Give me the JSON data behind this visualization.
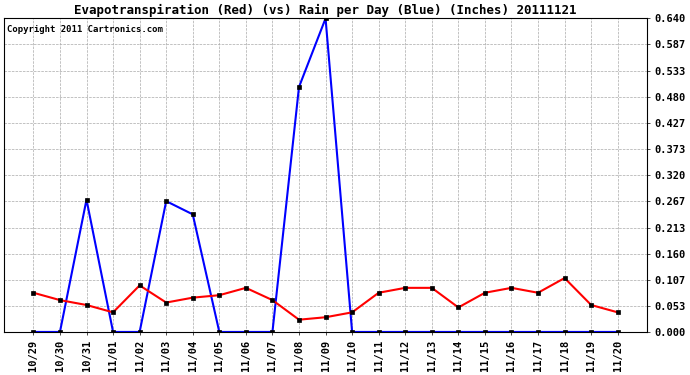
{
  "title": "Evapotranspiration (Red) (vs) Rain per Day (Blue) (Inches) 20111121",
  "copyright": "Copyright 2011 Cartronics.com",
  "x_labels": [
    "10/29",
    "10/30",
    "10/31",
    "11/01",
    "11/02",
    "11/03",
    "11/04",
    "11/05",
    "11/06",
    "11/07",
    "11/08",
    "11/09",
    "11/10",
    "11/11",
    "11/12",
    "11/13",
    "11/14",
    "11/15",
    "11/16",
    "11/17",
    "11/18",
    "11/19",
    "11/20"
  ],
  "blue_rain": [
    0.0,
    0.0,
    0.27,
    0.0,
    0.0,
    0.267,
    0.24,
    0.0,
    0.0,
    0.0,
    0.5,
    0.64,
    0.0,
    0.0,
    0.0,
    0.0,
    0.0,
    0.0,
    0.0,
    0.0,
    0.0,
    0.0,
    0.0
  ],
  "red_et": [
    0.08,
    0.065,
    0.055,
    0.04,
    0.095,
    0.06,
    0.07,
    0.075,
    0.09,
    0.065,
    0.025,
    0.03,
    0.04,
    0.08,
    0.09,
    0.09,
    0.05,
    0.08,
    0.09,
    0.08,
    0.11,
    0.055,
    0.04
  ],
  "y_ticks": [
    0.0,
    0.053,
    0.107,
    0.16,
    0.213,
    0.267,
    0.32,
    0.373,
    0.427,
    0.48,
    0.533,
    0.587,
    0.64
  ],
  "ylim": [
    0.0,
    0.64
  ],
  "blue_color": "#0000FF",
  "red_color": "#FF0000",
  "bg_color": "#FFFFFF",
  "grid_color": "#AAAAAA",
  "title_fontsize": 9,
  "tick_fontsize": 7.5,
  "copyright_fontsize": 6.5
}
